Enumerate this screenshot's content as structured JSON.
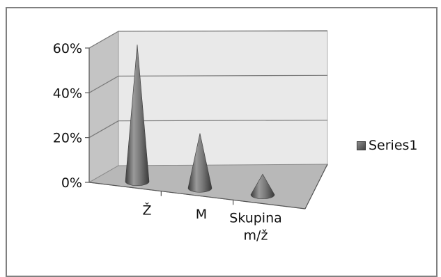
{
  "chart_data": {
    "type": "bar",
    "style": "3d-cone",
    "categories": [
      "Ž",
      "M",
      "Skupina m/ž"
    ],
    "series": [
      {
        "name": "Series1",
        "values": [
          0.6,
          0.24,
          0.09
        ]
      }
    ],
    "ylim": [
      0,
      0.6
    ],
    "yticks": [
      0,
      0.2,
      0.4,
      0.6
    ],
    "ytick_labels": [
      "0%",
      "20%",
      "40%",
      "60%"
    ],
    "grid": true,
    "legend": "right",
    "colors": {
      "cone": "#6b6b6b",
      "wall": "#e9e9e9",
      "side_wall": "#c4c4c4",
      "floor": "#b8b8b8",
      "gridline": "#7a7a7a"
    }
  }
}
